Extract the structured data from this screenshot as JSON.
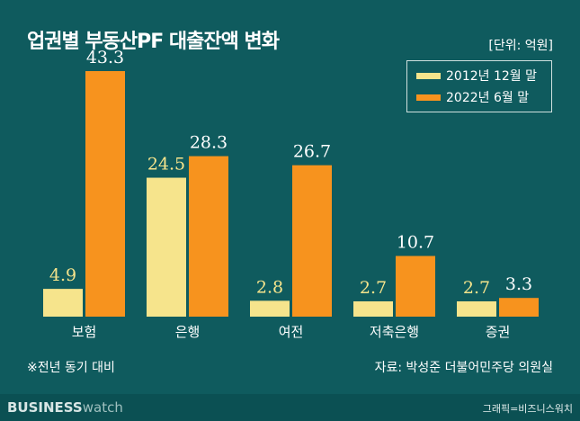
{
  "chart_data": {
    "type": "bar",
    "title": "업권별 부동산PF 대출잔액 변화",
    "unit": "[단위: 억원]",
    "categories": [
      "보험",
      "은행",
      "여전",
      "저축은행",
      "증권"
    ],
    "series": [
      {
        "name": "2012년 12월 말",
        "values": [
          4.9,
          24.5,
          2.8,
          2.7,
          2.7
        ],
        "color": "#f6e48c"
      },
      {
        "name": "2022년 6월 말",
        "values": [
          43.3,
          28.3,
          26.7,
          10.7,
          3.3
        ],
        "color": "#f7931e"
      }
    ],
    "ylim": [
      0,
      46
    ],
    "grid": false,
    "legend": "top-right"
  },
  "note": "※전년 동기 대비",
  "source": "자료: 박성준 더불어민주당 의원실",
  "footer": {
    "logo_bold": "BUSINESS",
    "logo_light": "watch",
    "credit": "그래픽=비즈니스워치"
  }
}
